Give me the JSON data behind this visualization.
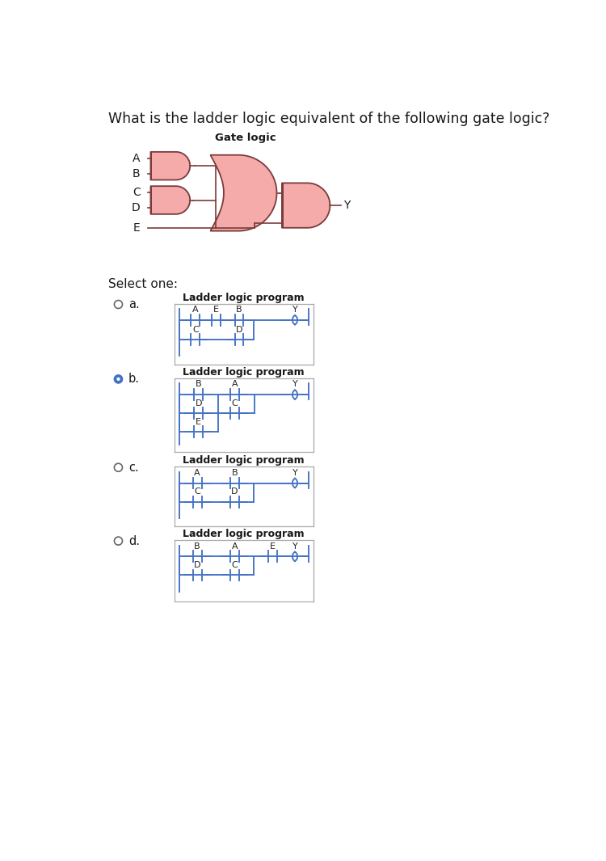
{
  "title": "What is the ladder logic equivalent of the following gate logic?",
  "gate_logic_title": "Gate logic",
  "gate_color": "#F4ABAA",
  "gate_edge_color": "#7B3B3B",
  "select_one": "Select one:",
  "option_label": "Ladder logic program",
  "selected_option": "b",
  "bg_color": "#ffffff",
  "ladder_color": "#4472C4",
  "text_color": "#1a1a1a",
  "radio_unsel_color": "#666666",
  "radio_sel_color": "#4472C4",
  "box_border_color": "#aaaaaa",
  "contact_label_color": "#222222",
  "font_size_title": 12.5,
  "font_size_option_label": 9,
  "font_size_contact": 8
}
